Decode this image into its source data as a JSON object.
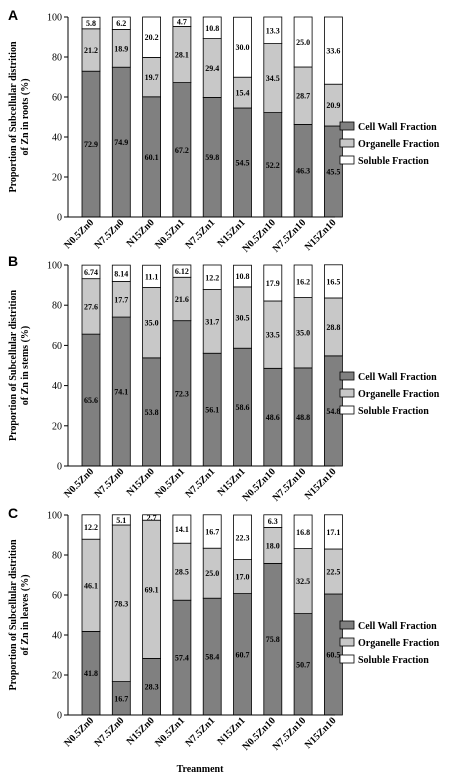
{
  "colors": {
    "cell_wall": "#808080",
    "organelle": "#c8c8c8",
    "soluble": "#ffffff",
    "axis": "#000000"
  },
  "chart_data": [
    {
      "type": "bar",
      "stacked": true,
      "panel": "A",
      "ylabel": "Proportion of Subcellular distrition of Zn in roots (%)",
      "xlabel": "",
      "ylim": [
        0,
        100
      ],
      "yticks": [
        0,
        20,
        40,
        60,
        80,
        100
      ],
      "categories": [
        "N0.5Zn0",
        "N7.5Zn0",
        "N15Zn0",
        "N0.5Zn1",
        "N7.5Zn1",
        "N15Zn1",
        "N0.5Zn10",
        "N7.5Zn10",
        "N15Zn10"
      ],
      "legend_position": "right",
      "series": [
        {
          "name": "Cell Wall Fraction",
          "values": [
            72.9,
            74.9,
            60.1,
            67.2,
            59.8,
            54.5,
            52.2,
            46.3,
            45.5
          ],
          "labels": [
            "72.9",
            "74.9",
            "60.1",
            "67.2",
            "59.8",
            "54.5",
            "52.2",
            "46.3",
            "45.5"
          ]
        },
        {
          "name": "Organelle Fraction",
          "values": [
            21.2,
            18.9,
            19.7,
            28.1,
            29.4,
            15.4,
            34.5,
            28.7,
            20.9
          ],
          "labels": [
            "21.2",
            "18.9",
            "19.7",
            "28.1",
            "29.4",
            "15.4",
            "34.5",
            "28.7",
            "20.9"
          ]
        },
        {
          "name": "Soluble Fraction",
          "values": [
            5.8,
            6.2,
            20.2,
            4.7,
            10.8,
            30.0,
            13.3,
            25.0,
            33.6
          ],
          "labels": [
            "5.8",
            "6.2",
            "20.2",
            "4.7",
            "10.8",
            "30.0",
            "13.3",
            "25.0",
            "33.6"
          ]
        }
      ]
    },
    {
      "type": "bar",
      "stacked": true,
      "panel": "B",
      "ylabel": "Proportion of Subcellular distrition of Zn in stems (%)",
      "xlabel": "",
      "ylim": [
        0,
        100
      ],
      "yticks": [
        0,
        20,
        40,
        60,
        80,
        100
      ],
      "categories": [
        "N0.5Zn0",
        "N7.5Zn0",
        "N15Zn0",
        "N0.5Zn1",
        "N7.5Zn1",
        "N15Zn1",
        "N0.5Zn10",
        "N7.5Zn10",
        "N15Zn10"
      ],
      "legend_position": "right",
      "series": [
        {
          "name": "Cell Wall Fraction",
          "values": [
            65.6,
            74.1,
            53.8,
            72.3,
            56.1,
            58.6,
            48.6,
            48.8,
            54.8
          ],
          "labels": [
            "65.6",
            "74.1",
            "53.8",
            "72.3",
            "56.1",
            "58.6",
            "48.6",
            "48.8",
            "54.8"
          ]
        },
        {
          "name": "Organelle Fraction",
          "values": [
            27.6,
            17.7,
            35.0,
            21.6,
            31.7,
            30.5,
            33.5,
            35.0,
            28.8
          ],
          "labels": [
            "27.6",
            "17.7",
            "35.0",
            "21.6",
            "31.7",
            "30.5",
            "33.5",
            "35.0",
            "28.8"
          ]
        },
        {
          "name": "Soluble Fraction",
          "values": [
            6.74,
            8.14,
            11.1,
            6.12,
            12.2,
            10.8,
            17.9,
            16.2,
            16.5
          ],
          "labels": [
            "6.74",
            "8.14",
            "11.1",
            "6.12",
            "12.2",
            "10.8",
            "17.9",
            "16.2",
            "16.5"
          ]
        }
      ]
    },
    {
      "type": "bar",
      "stacked": true,
      "panel": "C",
      "ylabel": "Proportion of Subcellular distrition of Zn in leaves (%)",
      "xlabel": "Treanment",
      "ylim": [
        0,
        100
      ],
      "yticks": [
        0,
        20,
        40,
        60,
        80,
        100
      ],
      "categories": [
        "N0.5Zn0",
        "N7.5Zn0",
        "N15Zn0",
        "N0.5Zn1",
        "N7.5Zn1",
        "N15Zn1",
        "N0.5Zn10",
        "N7.5Zn10",
        "N15Zn10"
      ],
      "legend_position": "right",
      "series": [
        {
          "name": "Cell Wall Fraction",
          "values": [
            41.8,
            16.7,
            28.3,
            57.4,
            58.4,
            60.7,
            75.8,
            50.7,
            60.5
          ],
          "labels": [
            "41.8",
            "16.7",
            "28.3",
            "57.4",
            "58.4",
            "60.7",
            "75.8",
            "50.7",
            "60.5"
          ]
        },
        {
          "name": "Organelle Fraction",
          "values": [
            46.1,
            78.3,
            69.1,
            28.5,
            25.0,
            17.0,
            18.0,
            32.5,
            22.5
          ],
          "labels": [
            "46.1",
            "78.3",
            "69.1",
            "28.5",
            "25.0",
            "17.0",
            "18.0",
            "32.5",
            "22.5"
          ]
        },
        {
          "name": "Soluble Fraction",
          "values": [
            12.2,
            5.1,
            2.7,
            14.1,
            16.7,
            22.3,
            6.3,
            16.8,
            17.1
          ],
          "labels": [
            "12.2",
            "5.1",
            "2.7",
            "14.1",
            "16.7",
            "22.3",
            "6.3",
            "16.8",
            "17.1"
          ]
        }
      ]
    }
  ]
}
